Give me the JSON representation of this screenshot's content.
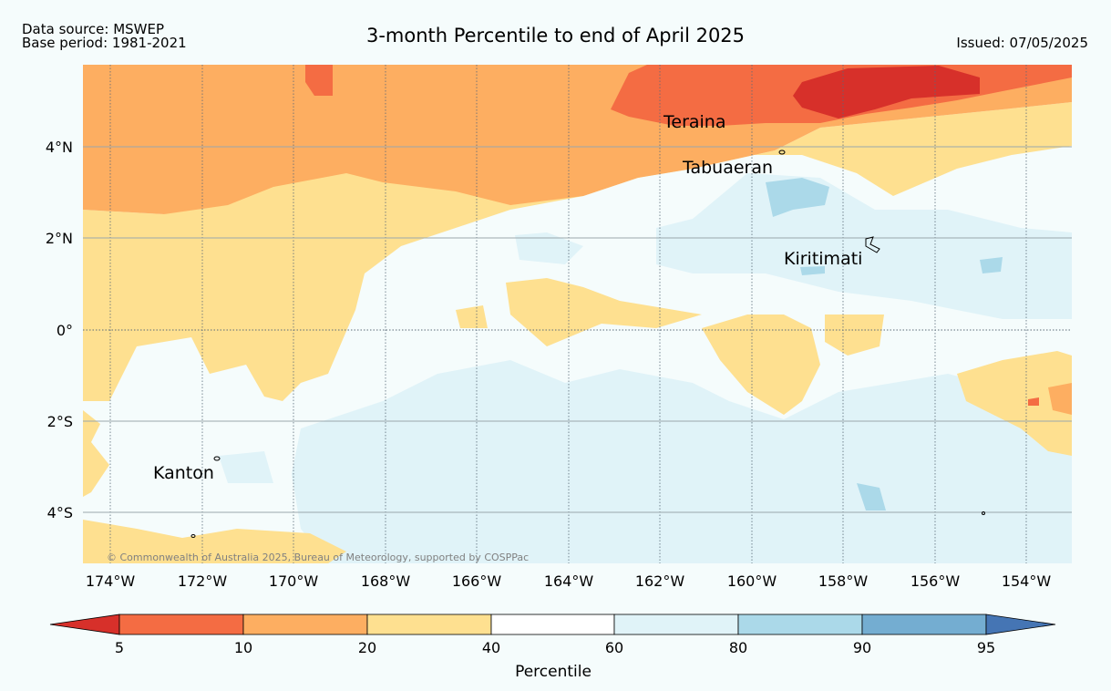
{
  "header": {
    "data_source": "Data source: MSWEP",
    "base_period": "Base period: 1981-2021",
    "title": "3-month Percentile to end of April 2025",
    "issued": "Issued: 07/05/2025"
  },
  "map": {
    "longitude_ticks": [
      "174°W",
      "172°W",
      "170°W",
      "168°W",
      "166°W",
      "164°W",
      "162°W",
      "160°W",
      "158°W",
      "156°W",
      "154°W"
    ],
    "latitude_ticks": [
      "4°N",
      "2°N",
      "0°",
      "2°S",
      "4°S"
    ],
    "places": [
      "Teraina",
      "Tabuaeran",
      "Kiritimati",
      "Kanton"
    ],
    "copyright": "© Commonwealth of Australia 2025, Bureau of Meteorology, supported by COSPPac"
  },
  "colorbar": {
    "label": "Percentile",
    "ticks": [
      "5",
      "10",
      "20",
      "40",
      "60",
      "80",
      "90",
      "95"
    ],
    "colors": {
      "below_5": "#d7302a",
      "5_10": "#f46c43",
      "10_20": "#fdae61",
      "20_40": "#fee090",
      "40_60": "#ffffff",
      "60_80": "#e0f3f8",
      "80_90": "#abd9e9",
      "90_95": "#74add1",
      "above_95": "#4575b4"
    }
  }
}
